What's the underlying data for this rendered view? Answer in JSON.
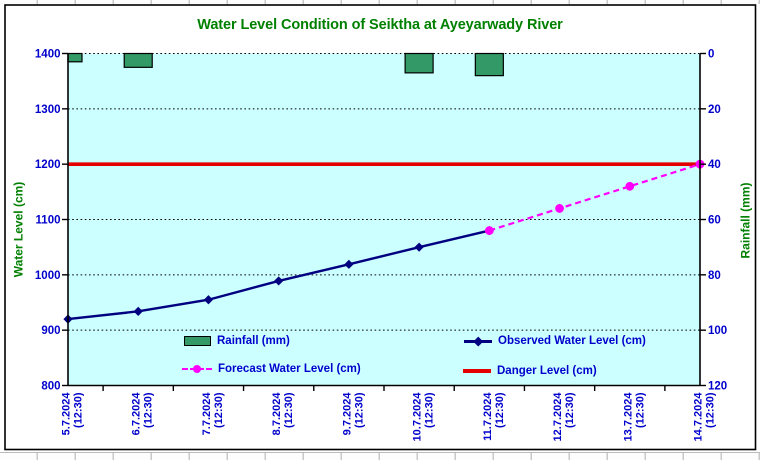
{
  "chart_data": {
    "type": "combo",
    "title": "Water Level Condition of Seiktha at Ayeyarwady River",
    "categories": [
      {
        "date": "5.7.2024",
        "time": "(12:30)"
      },
      {
        "date": "6.7.2024",
        "time": "(12:30)"
      },
      {
        "date": "7.7.2024",
        "time": "(12:30)"
      },
      {
        "date": "8.7.2024",
        "time": "(12:30)"
      },
      {
        "date": "9.7.2024",
        "time": "(12:30)"
      },
      {
        "date": "10.7.2024",
        "time": "(12:30)"
      },
      {
        "date": "11.7.2024",
        "time": "(12:30)"
      },
      {
        "date": "12.7.2024",
        "time": "(12:30)"
      },
      {
        "date": "13.7.2024",
        "time": "(12:30)"
      },
      {
        "date": "14.7.2024",
        "time": "(12:30)"
      }
    ],
    "left_axis": {
      "title": "Water Level (cm)",
      "min": 800,
      "max": 1400,
      "step": 100
    },
    "right_axis": {
      "title": "Rainfall (mm)",
      "min": 0,
      "max": 120,
      "step": 20,
      "direction": "reversed"
    },
    "series": {
      "rainfall": {
        "label": "Rainfall (mm)",
        "type": "bar",
        "axis": "right",
        "color": "#339966",
        "values": [
          3,
          5,
          0,
          0,
          0,
          7,
          8,
          0,
          0,
          0
        ]
      },
      "observed": {
        "label": "Observed Water Level (cm)",
        "type": "line",
        "marker": "diamond",
        "axis": "left",
        "color": "#000080",
        "values": [
          920,
          934,
          955,
          989,
          1019,
          1050,
          1080,
          null,
          null,
          null
        ]
      },
      "forecast": {
        "label": "Forecast Water Level (cm)",
        "type": "line",
        "style": "dashed",
        "marker": "circle",
        "axis": "left",
        "color": "#FF00FF",
        "values": [
          null,
          null,
          null,
          null,
          null,
          null,
          1080,
          1120,
          1160,
          1200
        ]
      },
      "danger": {
        "label": "Danger Level (cm)",
        "type": "line",
        "axis": "left",
        "color": "#E50000",
        "value": 1200
      }
    },
    "colors": {
      "plot_bg": "#CCFFFF",
      "title_text": "#008000",
      "axis_title_text": "#008000",
      "tick_text": "#0000CC",
      "legend_text": "#0000CC",
      "gridline": "#000000",
      "axis_line": "#000000"
    }
  }
}
